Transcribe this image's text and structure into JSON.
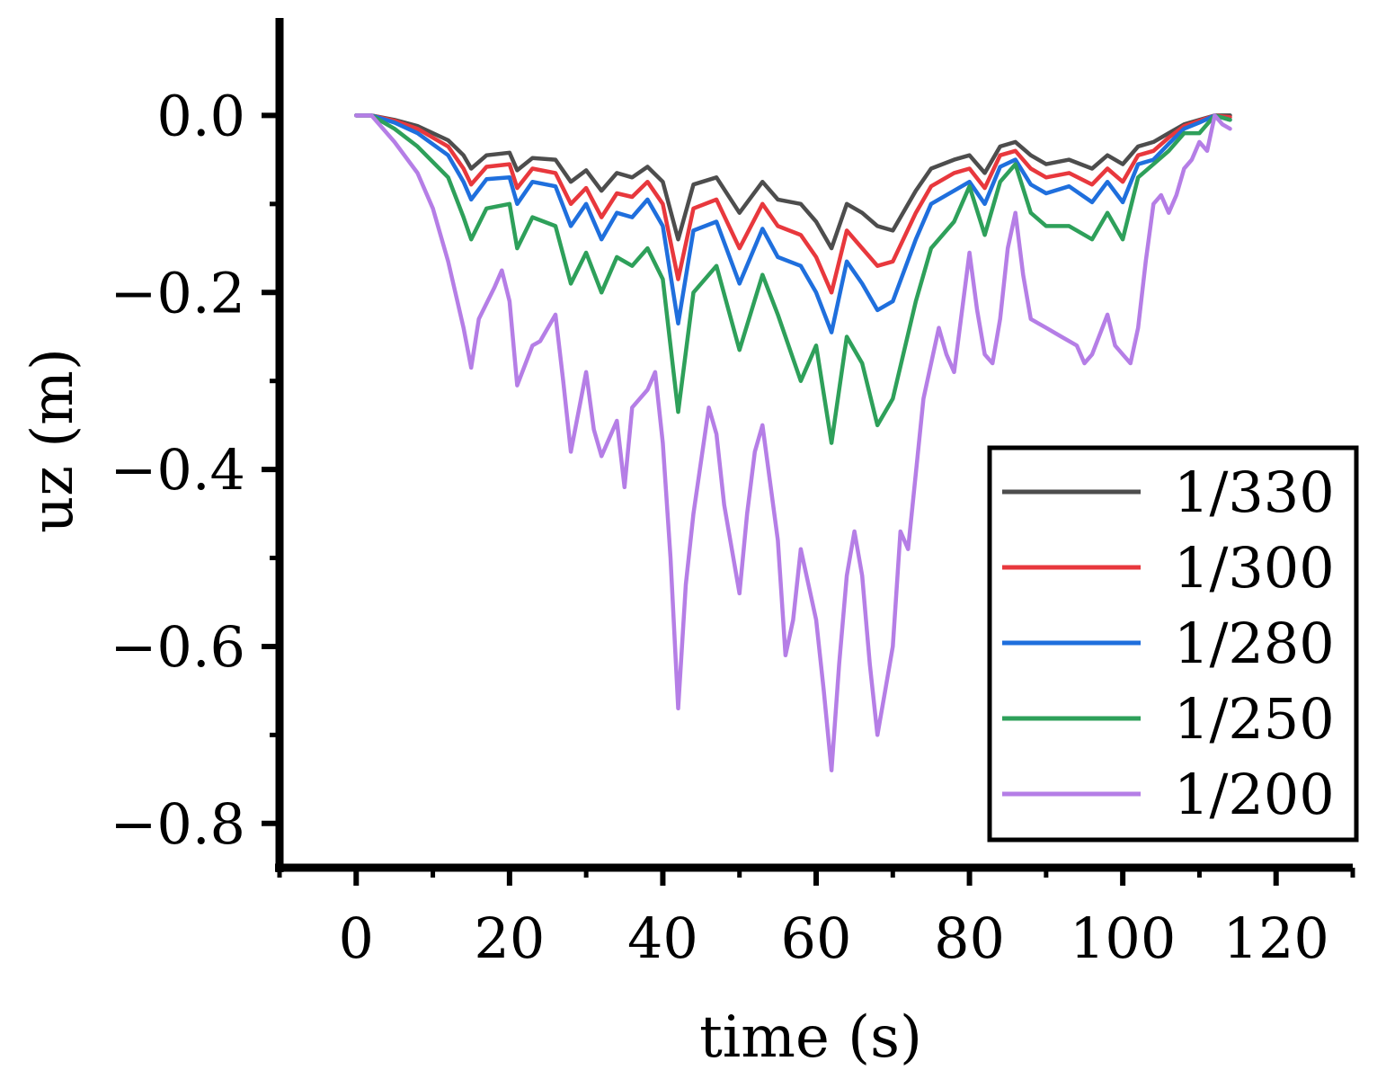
{
  "chart_data": {
    "type": "line",
    "title": "",
    "xlabel": "time (s)",
    "ylabel": "uz (m)",
    "xlim": [
      -10,
      130
    ],
    "ylim": [
      -0.85,
      0.1
    ],
    "xticks": [
      0,
      20,
      40,
      60,
      80,
      100,
      120
    ],
    "xtick_labels": [
      "0",
      "20",
      "40",
      "60",
      "80",
      "100",
      "120"
    ],
    "yticks": [
      0.0,
      -0.2,
      -0.4,
      -0.6,
      -0.8
    ],
    "ytick_labels": [
      "0.0",
      "−0.2",
      "−0.4",
      "−0.6",
      "−0.8"
    ],
    "legend_position": "bottom-right",
    "series": [
      {
        "name": "1/330",
        "color": "#4d4d4d",
        "x": [
          0,
          2,
          5,
          8,
          12,
          14,
          15,
          17,
          20,
          21,
          23,
          26,
          28,
          30,
          32,
          34,
          36,
          38,
          40,
          42,
          44,
          47,
          50,
          53,
          55,
          58,
          60,
          62,
          64,
          66,
          68,
          70,
          73,
          75,
          78,
          80,
          82,
          84,
          86,
          88,
          90,
          93,
          96,
          98,
          100,
          102,
          104,
          106,
          108,
          110,
          112,
          114
        ],
        "y": [
          0,
          0,
          -0.005,
          -0.012,
          -0.028,
          -0.045,
          -0.06,
          -0.045,
          -0.042,
          -0.062,
          -0.048,
          -0.05,
          -0.075,
          -0.062,
          -0.085,
          -0.065,
          -0.07,
          -0.058,
          -0.075,
          -0.14,
          -0.078,
          -0.07,
          -0.11,
          -0.075,
          -0.095,
          -0.1,
          -0.12,
          -0.15,
          -0.1,
          -0.11,
          -0.125,
          -0.13,
          -0.085,
          -0.06,
          -0.05,
          -0.045,
          -0.065,
          -0.035,
          -0.03,
          -0.045,
          -0.055,
          -0.05,
          -0.06,
          -0.045,
          -0.055,
          -0.035,
          -0.03,
          -0.02,
          -0.01,
          -0.005,
          0,
          0
        ]
      },
      {
        "name": "1/300",
        "color": "#e8383d",
        "x": [
          0,
          2,
          5,
          8,
          12,
          14,
          15,
          17,
          20,
          21,
          23,
          26,
          28,
          30,
          32,
          34,
          36,
          38,
          40,
          42,
          44,
          47,
          50,
          53,
          55,
          58,
          60,
          62,
          64,
          66,
          68,
          70,
          73,
          75,
          78,
          80,
          82,
          84,
          86,
          88,
          90,
          93,
          96,
          98,
          100,
          102,
          104,
          106,
          108,
          110,
          112,
          114
        ],
        "y": [
          0,
          0,
          -0.006,
          -0.015,
          -0.035,
          -0.06,
          -0.078,
          -0.058,
          -0.055,
          -0.082,
          -0.06,
          -0.065,
          -0.1,
          -0.082,
          -0.115,
          -0.088,
          -0.092,
          -0.075,
          -0.1,
          -0.185,
          -0.105,
          -0.095,
          -0.15,
          -0.1,
          -0.125,
          -0.135,
          -0.16,
          -0.2,
          -0.13,
          -0.15,
          -0.17,
          -0.165,
          -0.11,
          -0.08,
          -0.065,
          -0.06,
          -0.082,
          -0.045,
          -0.04,
          -0.06,
          -0.07,
          -0.065,
          -0.078,
          -0.06,
          -0.075,
          -0.045,
          -0.04,
          -0.025,
          -0.012,
          -0.006,
          0,
          -0.002
        ]
      },
      {
        "name": "1/280",
        "color": "#1f6fdd",
        "x": [
          0,
          2,
          5,
          8,
          12,
          14,
          15,
          17,
          20,
          21,
          23,
          26,
          28,
          30,
          32,
          34,
          36,
          38,
          40,
          42,
          44,
          47,
          50,
          53,
          55,
          58,
          60,
          62,
          64,
          66,
          68,
          70,
          73,
          75,
          78,
          80,
          82,
          84,
          86,
          88,
          90,
          93,
          96,
          98,
          100,
          102,
          104,
          106,
          108,
          110,
          112,
          114
        ],
        "y": [
          0,
          0,
          -0.008,
          -0.02,
          -0.045,
          -0.075,
          -0.095,
          -0.072,
          -0.07,
          -0.1,
          -0.075,
          -0.08,
          -0.125,
          -0.1,
          -0.14,
          -0.11,
          -0.115,
          -0.095,
          -0.125,
          -0.235,
          -0.13,
          -0.12,
          -0.19,
          -0.128,
          -0.16,
          -0.17,
          -0.2,
          -0.245,
          -0.165,
          -0.19,
          -0.22,
          -0.21,
          -0.14,
          -0.1,
          -0.085,
          -0.075,
          -0.1,
          -0.058,
          -0.05,
          -0.078,
          -0.088,
          -0.08,
          -0.098,
          -0.075,
          -0.098,
          -0.055,
          -0.05,
          -0.032,
          -0.015,
          -0.008,
          0,
          -0.005
        ]
      },
      {
        "name": "1/250",
        "color": "#2ea05a",
        "x": [
          0,
          2,
          5,
          8,
          12,
          14,
          15,
          17,
          20,
          21,
          23,
          26,
          28,
          30,
          32,
          34,
          36,
          38,
          40,
          42,
          44,
          47,
          50,
          53,
          55,
          58,
          60,
          62,
          64,
          66,
          68,
          70,
          73,
          75,
          78,
          80,
          82,
          84,
          86,
          88,
          90,
          93,
          96,
          98,
          100,
          102,
          104,
          106,
          108,
          110,
          112,
          114
        ],
        "y": [
          0,
          0,
          -0.015,
          -0.035,
          -0.07,
          -0.115,
          -0.14,
          -0.105,
          -0.1,
          -0.15,
          -0.115,
          -0.125,
          -0.19,
          -0.155,
          -0.2,
          -0.16,
          -0.17,
          -0.15,
          -0.185,
          -0.335,
          -0.2,
          -0.17,
          -0.265,
          -0.18,
          -0.225,
          -0.3,
          -0.26,
          -0.37,
          -0.25,
          -0.28,
          -0.35,
          -0.32,
          -0.21,
          -0.15,
          -0.12,
          -0.08,
          -0.135,
          -0.075,
          -0.055,
          -0.11,
          -0.125,
          -0.125,
          -0.14,
          -0.11,
          -0.14,
          -0.07,
          -0.055,
          -0.04,
          -0.02,
          -0.02,
          0,
          -0.005
        ]
      },
      {
        "name": "1/200",
        "color": "#b57ee6",
        "x": [
          0,
          2,
          5,
          8,
          10,
          12,
          14,
          15,
          16,
          18,
          19,
          20,
          21,
          23,
          24,
          26,
          27,
          28,
          30,
          31,
          32,
          34,
          35,
          36,
          38,
          39,
          40,
          41,
          42,
          43,
          44,
          46,
          47,
          48,
          50,
          51,
          52,
          53,
          55,
          56,
          57,
          58,
          60,
          61,
          62,
          63,
          64,
          65,
          66,
          67,
          68,
          69,
          70,
          71,
          72,
          74,
          76,
          77,
          78,
          80,
          81,
          82,
          83,
          84,
          85,
          86,
          87,
          88,
          89,
          90,
          92,
          94,
          95,
          96,
          98,
          99,
          100,
          101,
          102,
          103,
          104,
          105,
          106,
          107,
          108,
          109,
          110,
          111,
          112,
          113,
          114
        ],
        "y": [
          0,
          0,
          -0.03,
          -0.065,
          -0.105,
          -0.165,
          -0.24,
          -0.285,
          -0.23,
          -0.195,
          -0.175,
          -0.21,
          -0.305,
          -0.26,
          -0.255,
          -0.225,
          -0.3,
          -0.38,
          -0.29,
          -0.355,
          -0.385,
          -0.345,
          -0.42,
          -0.33,
          -0.31,
          -0.29,
          -0.37,
          -0.5,
          -0.67,
          -0.53,
          -0.45,
          -0.33,
          -0.36,
          -0.44,
          -0.54,
          -0.45,
          -0.38,
          -0.35,
          -0.48,
          -0.61,
          -0.57,
          -0.49,
          -0.57,
          -0.65,
          -0.74,
          -0.62,
          -0.52,
          -0.47,
          -0.52,
          -0.62,
          -0.7,
          -0.65,
          -0.6,
          -0.47,
          -0.49,
          -0.32,
          -0.24,
          -0.27,
          -0.29,
          -0.155,
          -0.22,
          -0.27,
          -0.28,
          -0.23,
          -0.15,
          -0.11,
          -0.18,
          -0.23,
          -0.235,
          -0.24,
          -0.25,
          -0.26,
          -0.28,
          -0.27,
          -0.225,
          -0.26,
          -0.27,
          -0.28,
          -0.24,
          -0.165,
          -0.1,
          -0.09,
          -0.11,
          -0.09,
          -0.06,
          -0.05,
          -0.03,
          -0.04,
          0,
          -0.01,
          -0.015
        ]
      }
    ]
  }
}
